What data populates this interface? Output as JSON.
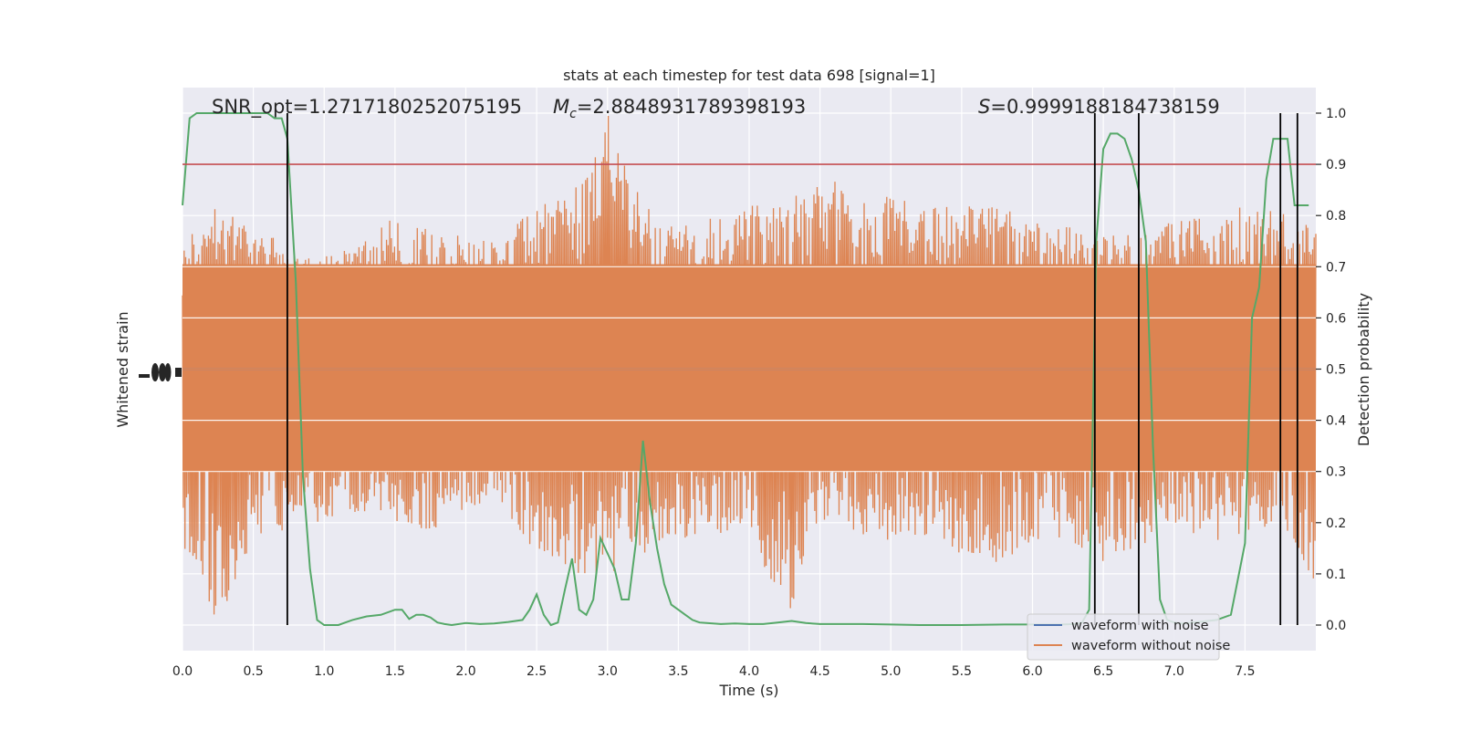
{
  "chart_data": {
    "type": "line",
    "title": "stats at each timestep for test data 698 [signal=1]",
    "xlabel": "Time (s)",
    "ylabel_left": "Whitened strain",
    "ylabel_right": "Detection probability",
    "xlim": [
      0,
      8
    ],
    "ylim_right": [
      -0.05,
      1.05
    ],
    "xticks": [
      "0.0",
      "0.5",
      "1.0",
      "1.5",
      "2.0",
      "2.5",
      "3.0",
      "3.5",
      "4.0",
      "4.5",
      "5.0",
      "5.5",
      "6.0",
      "6.5",
      "7.0",
      "7.5"
    ],
    "yticks_right": [
      "0.0",
      "0.1",
      "0.2",
      "0.3",
      "0.4",
      "0.5",
      "0.6",
      "0.7",
      "0.8",
      "0.9",
      "1.0"
    ],
    "grid": true,
    "annotations": {
      "snr": "SNR_opt=1.2717180252075195",
      "mc_symbol": "M",
      "mc_sub": "c",
      "mc_value": "=2.8848931789398193",
      "s_symbol": "S",
      "s_value": "=0.9999188184738159"
    },
    "threshold": 0.9,
    "vertical_lines": [
      0.74,
      6.44,
      6.75,
      7.75,
      7.87
    ],
    "legend": {
      "position": "lower right",
      "entries": [
        {
          "label": "waveform with noise",
          "color": "#4c72b0"
        },
        {
          "label": "waveform without noise",
          "color": "#dd8452"
        }
      ]
    },
    "noise_envelope": {
      "times": [
        0,
        0.25,
        0.5,
        0.75,
        1.0,
        1.25,
        1.5,
        1.75,
        2.0,
        2.25,
        2.5,
        2.75,
        3.0,
        3.25,
        3.5,
        3.75,
        4.0,
        4.25,
        4.5,
        4.75,
        5.0,
        5.25,
        5.5,
        5.75,
        6.0,
        6.25,
        6.5,
        6.75,
        7.0,
        7.25,
        7.5,
        7.75,
        8.0
      ],
      "upper": [
        0.74,
        0.84,
        0.8,
        0.73,
        0.72,
        0.74,
        0.8,
        0.77,
        0.76,
        0.76,
        0.82,
        0.84,
        1.0,
        0.82,
        0.78,
        0.8,
        0.82,
        0.82,
        0.9,
        0.82,
        0.84,
        0.82,
        0.82,
        0.83,
        0.8,
        0.78,
        0.77,
        0.76,
        0.79,
        0.8,
        0.82,
        0.81,
        0.78
      ],
      "lower": [
        0.15,
        0.0,
        0.17,
        0.16,
        0.2,
        0.22,
        0.2,
        0.18,
        0.23,
        0.24,
        0.13,
        0.1,
        0.1,
        0.13,
        0.17,
        0.17,
        0.2,
        0.0,
        0.19,
        0.18,
        0.16,
        0.16,
        0.14,
        0.12,
        0.16,
        0.17,
        0.12,
        0.15,
        0.2,
        0.16,
        0.18,
        0.2,
        0.07
      ]
    },
    "series": [
      {
        "name": "waveform with noise",
        "color": "#4c72b0",
        "axis": "left",
        "x": [
          0,
          8
        ],
        "y": [
          0.5,
          0.5
        ]
      },
      {
        "name": "waveform without noise",
        "color": "#dd8452",
        "axis": "left",
        "x": [
          0,
          8
        ],
        "y": [
          0.5,
          0.5
        ]
      },
      {
        "color": "#55a868",
        "axis": "right",
        "x": [
          0,
          0.05,
          0.1,
          0.2,
          0.3,
          0.4,
          0.5,
          0.6,
          0.65,
          0.7,
          0.74,
          0.8,
          0.85,
          0.9,
          0.95,
          1.0,
          1.1,
          1.2,
          1.3,
          1.4,
          1.5,
          1.55,
          1.6,
          1.65,
          1.7,
          1.75,
          1.8,
          1.85,
          1.9,
          2.0,
          2.1,
          2.2,
          2.3,
          2.4,
          2.45,
          2.5,
          2.55,
          2.6,
          2.65,
          2.7,
          2.75,
          2.8,
          2.85,
          2.9,
          2.95,
          3.0,
          3.05,
          3.1,
          3.15,
          3.2,
          3.25,
          3.3,
          3.35,
          3.4,
          3.45,
          3.5,
          3.55,
          3.6,
          3.65,
          3.7,
          3.8,
          3.9,
          4.0,
          4.1,
          4.2,
          4.3,
          4.4,
          4.5,
          4.6,
          4.8,
          5.0,
          5.2,
          5.5,
          5.8,
          6.0,
          6.2,
          6.3,
          6.35,
          6.4,
          6.45,
          6.5,
          6.55,
          6.6,
          6.65,
          6.7,
          6.75,
          6.8,
          6.85,
          6.9,
          6.95,
          7.0,
          7.05,
          7.1,
          7.2,
          7.3,
          7.4,
          7.5,
          7.55,
          7.6,
          7.65,
          7.7,
          7.75,
          7.8,
          7.85,
          7.9,
          7.95
        ],
        "y": [
          0.82,
          0.99,
          1.0,
          1.0,
          1.0,
          1.0,
          1.0,
          1.0,
          0.99,
          0.99,
          0.95,
          0.67,
          0.29,
          0.11,
          0.01,
          0.0,
          0.0,
          0.01,
          0.017,
          0.02,
          0.03,
          0.03,
          0.012,
          0.02,
          0.02,
          0.015,
          0.005,
          0.002,
          0.0,
          0.004,
          0.002,
          0.003,
          0.006,
          0.01,
          0.03,
          0.06,
          0.02,
          0.0,
          0.005,
          0.07,
          0.13,
          0.03,
          0.02,
          0.05,
          0.17,
          0.14,
          0.11,
          0.05,
          0.05,
          0.16,
          0.36,
          0.24,
          0.15,
          0.08,
          0.04,
          0.03,
          0.02,
          0.01,
          0.005,
          0.004,
          0.002,
          0.003,
          0.002,
          0.002,
          0.005,
          0.008,
          0.004,
          0.002,
          0.002,
          0.002,
          0.001,
          0.0,
          0.0,
          0.001,
          0.001,
          0.001,
          0.002,
          0.005,
          0.03,
          0.75,
          0.93,
          0.96,
          0.96,
          0.95,
          0.91,
          0.85,
          0.75,
          0.35,
          0.05,
          0.01,
          0.005,
          0.003,
          0.004,
          0.007,
          0.01,
          0.02,
          0.16,
          0.6,
          0.66,
          0.87,
          0.95,
          0.95,
          0.95,
          0.82,
          0.82,
          0.82
        ]
      }
    ]
  }
}
